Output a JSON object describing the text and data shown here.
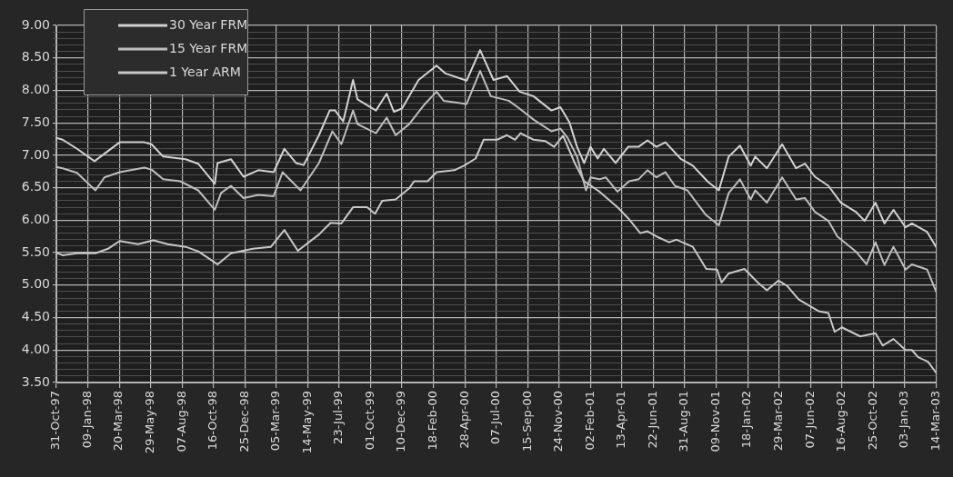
{
  "chart_data": {
    "type": "line",
    "xlim": [
      "1997-10-31",
      "2003-03-14"
    ],
    "xticks": [
      {
        "value": "1997-10-31",
        "label": "31-Oct-97"
      },
      {
        "value": "1998-01-09",
        "label": "09-Jan-98"
      },
      {
        "value": "1998-03-20",
        "label": "20-Mar-98"
      },
      {
        "value": "1998-05-29",
        "label": "29-May-98"
      },
      {
        "value": "1998-08-07",
        "label": "07-Aug-98"
      },
      {
        "value": "1998-10-16",
        "label": "16-Oct-98"
      },
      {
        "value": "1998-12-25",
        "label": "25-Dec-98"
      },
      {
        "value": "1999-03-05",
        "label": "05-Mar-99"
      },
      {
        "value": "1999-05-14",
        "label": "14-May-99"
      },
      {
        "value": "1999-07-23",
        "label": "23-Jul-99"
      },
      {
        "value": "1999-10-01",
        "label": "01-Oct-99"
      },
      {
        "value": "1999-12-10",
        "label": "10-Dec-99"
      },
      {
        "value": "2000-02-18",
        "label": "18-Feb-00"
      },
      {
        "value": "2000-04-28",
        "label": "28-Apr-00"
      },
      {
        "value": "2000-07-07",
        "label": "07-Jul-00"
      },
      {
        "value": "2000-09-15",
        "label": "15-Sep-00"
      },
      {
        "value": "2000-11-24",
        "label": "24-Nov-00"
      },
      {
        "value": "2001-02-02",
        "label": "02-Feb-01"
      },
      {
        "value": "2001-04-13",
        "label": "13-Apr-01"
      },
      {
        "value": "2001-06-22",
        "label": "22-Jun-01"
      },
      {
        "value": "2001-08-31",
        "label": "31-Aug-01"
      },
      {
        "value": "2001-11-09",
        "label": "09-Nov-01"
      },
      {
        "value": "2002-01-18",
        "label": "18-Jan-02"
      },
      {
        "value": "2002-03-29",
        "label": "29-Mar-02"
      },
      {
        "value": "2002-06-07",
        "label": "07-Jun-02"
      },
      {
        "value": "2002-08-16",
        "label": "16-Aug-02"
      },
      {
        "value": "2002-10-25",
        "label": "25-Oct-02"
      },
      {
        "value": "2003-01-03",
        "label": "03-Jan-03"
      },
      {
        "value": "2003-03-14",
        "label": "14-Mar-03"
      }
    ],
    "ylim": [
      3.5,
      9
    ],
    "yticks": [
      {
        "value": 3.5,
        "label": "3.50"
      },
      {
        "value": 3.6,
        "label": null
      },
      {
        "value": 3.7,
        "label": null
      },
      {
        "value": 3.8,
        "label": null
      },
      {
        "value": 3.9,
        "label": null
      },
      {
        "value": 4,
        "label": "4.00"
      },
      {
        "value": 4.1,
        "label": null
      },
      {
        "value": 4.2,
        "label": null
      },
      {
        "value": 4.3,
        "label": null
      },
      {
        "value": 4.4,
        "label": null
      },
      {
        "value": 4.5,
        "label": "4.50"
      },
      {
        "value": 4.6,
        "label": null
      },
      {
        "value": 4.7,
        "label": null
      },
      {
        "value": 4.8,
        "label": null
      },
      {
        "value": 4.9,
        "label": null
      },
      {
        "value": 5,
        "label": "5.00"
      },
      {
        "value": 5.1,
        "label": null
      },
      {
        "value": 5.2,
        "label": null
      },
      {
        "value": 5.3,
        "label": null
      },
      {
        "value": 5.4,
        "label": null
      },
      {
        "value": 5.5,
        "label": "5.50"
      },
      {
        "value": 5.6,
        "label": null
      },
      {
        "value": 5.7,
        "label": null
      },
      {
        "value": 5.8,
        "label": null
      },
      {
        "value": 5.9,
        "label": null
      },
      {
        "value": 6,
        "label": "6.00"
      },
      {
        "value": 6.1,
        "label": null
      },
      {
        "value": 6.2,
        "label": null
      },
      {
        "value": 6.3,
        "label": null
      },
      {
        "value": 6.4,
        "label": null
      },
      {
        "value": 6.5,
        "label": "6.50"
      },
      {
        "value": 6.6,
        "label": null
      },
      {
        "value": 6.7,
        "label": null
      },
      {
        "value": 6.8,
        "label": null
      },
      {
        "value": 6.9,
        "label": null
      },
      {
        "value": 7,
        "label": "7.00"
      },
      {
        "value": 7.1,
        "label": null
      },
      {
        "value": 7.2,
        "label": null
      },
      {
        "value": 7.3,
        "label": null
      },
      {
        "value": 7.4,
        "label": null
      },
      {
        "value": 7.5,
        "label": "7.50"
      },
      {
        "value": 7.6,
        "label": null
      },
      {
        "value": 7.7,
        "label": null
      },
      {
        "value": 7.8,
        "label": null
      },
      {
        "value": 7.9,
        "label": null
      },
      {
        "value": 8,
        "label": "8.00"
      },
      {
        "value": 8.1,
        "label": null
      },
      {
        "value": 8.2,
        "label": null
      },
      {
        "value": 8.3,
        "label": null
      },
      {
        "value": 8.4,
        "label": null
      },
      {
        "value": 8.5,
        "label": "8.50"
      },
      {
        "value": 8.6,
        "label": null
      },
      {
        "value": 8.7,
        "label": null
      },
      {
        "value": 8.8,
        "label": null
      },
      {
        "value": 8.9,
        "label": null
      },
      {
        "value": 9,
        "label": "9.00"
      }
    ],
    "grid": true,
    "legend": "top left",
    "line_style": "solid",
    "series": [
      {
        "name": "30 Year FRM",
        "color": "#d2d2d2",
        "x": [
          "1997-10-31",
          "1997-11-14",
          "1997-12-16",
          "1998-01-24",
          "1998-03-21",
          "1998-05-15",
          "1998-05-31",
          "1998-06-26",
          "1998-08-15",
          "1998-09-12",
          "1998-10-19",
          "1998-10-25",
          "1998-11-24",
          "1998-12-22",
          "1999-01-24",
          "1999-02-27",
          "1999-03-23",
          "1999-04-18",
          "1999-05-05",
          "1999-06-08",
          "1999-07-02",
          "1999-07-14",
          "1999-08-01",
          "1999-08-23",
          "1999-09-02",
          "1999-10-13",
          "1999-11-06",
          "1999-11-22",
          "1999-12-10",
          "2000-01-16",
          "2000-02-25",
          "2000-03-16",
          "2000-05-02",
          "2000-06-01",
          "2000-07-01",
          "2000-07-31",
          "2000-08-28",
          "2000-09-28",
          "2000-11-07",
          "2000-11-27",
          "2000-12-17",
          "2001-01-03",
          "2001-01-19",
          "2001-02-02",
          "2001-02-18",
          "2001-03-04",
          "2001-03-30",
          "2001-04-27",
          "2001-05-20",
          "2001-06-09",
          "2001-06-29",
          "2001-07-19",
          "2001-08-23",
          "2001-09-18",
          "2001-10-22",
          "2001-11-15",
          "2001-12-07",
          "2002-01-01",
          "2002-01-25",
          "2002-02-04",
          "2002-03-02",
          "2002-04-05",
          "2002-05-06",
          "2002-05-26",
          "2002-06-17",
          "2002-07-17",
          "2002-08-14",
          "2002-09-16",
          "2002-10-06",
          "2002-10-30",
          "2002-11-19",
          "2002-12-09",
          "2003-01-05",
          "2003-01-19",
          "2003-02-22",
          "2003-03-14"
        ],
        "values": [
          7.27,
          7.24,
          7.1,
          6.91,
          7.2,
          7.2,
          7.17,
          6.98,
          6.94,
          6.87,
          6.56,
          6.88,
          6.94,
          6.67,
          6.77,
          6.74,
          7.1,
          6.88,
          6.85,
          7.31,
          7.69,
          7.69,
          7.52,
          8.16,
          7.86,
          7.69,
          7.95,
          7.67,
          7.72,
          8.16,
          8.38,
          8.26,
          8.15,
          8.62,
          8.16,
          8.22,
          7.98,
          7.91,
          7.69,
          7.74,
          7.51,
          7.13,
          6.88,
          7.13,
          6.95,
          7.1,
          6.88,
          7.13,
          7.13,
          7.23,
          7.13,
          7.2,
          6.94,
          6.84,
          6.59,
          6.46,
          6.98,
          7.15,
          6.84,
          6.98,
          6.8,
          7.17,
          6.8,
          6.87,
          6.67,
          6.53,
          6.27,
          6.13,
          5.99,
          6.27,
          5.95,
          6.16,
          5.89,
          5.95,
          5.82,
          5.59
        ]
      },
      {
        "name": "15 Year FRM",
        "color": "#bebebe",
        "x": [
          "1997-10-31",
          "1997-11-14",
          "1997-12-16",
          "1998-01-26",
          "1998-02-15",
          "1998-03-21",
          "1998-05-15",
          "1998-05-31",
          "1998-06-26",
          "1998-08-03",
          "1998-09-12",
          "1998-10-19",
          "1998-11-02",
          "1998-11-24",
          "1998-12-22",
          "1999-01-24",
          "1999-02-27",
          "1999-03-19",
          "1999-04-28",
          "1999-06-08",
          "1999-07-08",
          "1999-07-28",
          "1999-08-23",
          "1999-09-02",
          "1999-10-13",
          "1999-11-06",
          "1999-11-26",
          "1999-12-26",
          "2000-01-30",
          "2000-02-25",
          "2000-03-12",
          "2000-05-02",
          "2000-06-01",
          "2000-06-25",
          "2000-08-04",
          "2000-08-28",
          "2000-09-28",
          "2000-11-07",
          "2000-11-27",
          "2000-12-13",
          "2001-01-03",
          "2001-01-23",
          "2001-02-02",
          "2001-02-22",
          "2001-03-08",
          "2001-04-03",
          "2001-04-29",
          "2001-05-20",
          "2001-06-09",
          "2001-06-29",
          "2001-07-19",
          "2001-08-09",
          "2001-09-06",
          "2001-10-16",
          "2001-11-15",
          "2001-12-07",
          "2002-01-01",
          "2002-01-25",
          "2002-02-04",
          "2002-03-02",
          "2002-04-05",
          "2002-05-06",
          "2002-05-26",
          "2002-06-17",
          "2002-07-17",
          "2002-08-06",
          "2002-09-16",
          "2002-10-10",
          "2002-10-30",
          "2002-11-19",
          "2002-12-09",
          "2003-01-05",
          "2003-01-19",
          "2003-02-22",
          "2003-03-14"
        ],
        "values": [
          6.82,
          6.8,
          6.73,
          6.46,
          6.66,
          6.74,
          6.81,
          6.78,
          6.63,
          6.6,
          6.46,
          6.16,
          6.42,
          6.53,
          6.34,
          6.39,
          6.37,
          6.74,
          6.46,
          6.88,
          7.37,
          7.17,
          7.69,
          7.48,
          7.34,
          7.58,
          7.31,
          7.48,
          7.79,
          7.98,
          7.84,
          7.79,
          8.3,
          7.91,
          7.84,
          7.72,
          7.55,
          7.37,
          7.41,
          7.27,
          6.98,
          6.46,
          6.66,
          6.63,
          6.66,
          6.44,
          6.6,
          6.63,
          6.77,
          6.66,
          6.74,
          6.53,
          6.46,
          6.09,
          5.92,
          6.42,
          6.63,
          6.32,
          6.46,
          6.27,
          6.66,
          6.32,
          6.34,
          6.13,
          5.99,
          5.75,
          5.52,
          5.32,
          5.66,
          5.31,
          5.59,
          5.24,
          5.32,
          5.24,
          4.9
        ]
      },
      {
        "name": "1 Year ARM",
        "color": "#c8c8c8",
        "x": [
          "1997-10-31",
          "1997-11-14",
          "1997-12-16",
          "1998-01-26",
          "1998-02-23",
          "1998-03-21",
          "1998-05-01",
          "1998-06-04",
          "1998-07-06",
          "1998-08-15",
          "1998-09-12",
          "1998-10-25",
          "1998-11-24",
          "1999-01-12",
          "1999-02-21",
          "1999-03-23",
          "1999-04-22",
          "1999-06-08",
          "1999-07-04",
          "1999-07-28",
          "1999-08-23",
          "1999-09-23",
          "1999-10-11",
          "1999-10-27",
          "1999-11-26",
          "1999-12-26",
          "2000-01-06",
          "2000-02-05",
          "2000-02-25",
          "2000-04-05",
          "2000-04-26",
          "2000-05-22",
          "2000-06-09",
          "2000-07-09",
          "2000-07-31",
          "2000-08-18",
          "2000-08-30",
          "2000-09-28",
          "2000-10-24",
          "2000-11-13",
          "2000-12-03",
          "2000-12-29",
          "2001-01-19",
          "2001-02-22",
          "2001-04-03",
          "2001-04-27",
          "2001-05-24",
          "2001-06-09",
          "2001-06-29",
          "2001-07-27",
          "2001-08-13",
          "2001-09-18",
          "2001-10-18",
          "2001-11-11",
          "2001-11-21",
          "2001-12-07",
          "2002-01-11",
          "2002-02-10",
          "2002-03-02",
          "2002-03-28",
          "2002-04-16",
          "2002-05-12",
          "2002-06-25",
          "2002-07-17",
          "2002-07-31",
          "2002-08-16",
          "2002-09-26",
          "2002-10-30",
          "2002-11-15",
          "2002-12-09",
          "2003-01-05",
          "2003-01-19",
          "2003-02-02",
          "2003-02-24",
          "2003-03-14"
        ],
        "values": [
          5.5,
          5.46,
          5.49,
          5.49,
          5.56,
          5.68,
          5.63,
          5.69,
          5.63,
          5.59,
          5.52,
          5.32,
          5.49,
          5.56,
          5.59,
          5.85,
          5.53,
          5.78,
          5.96,
          5.95,
          6.2,
          6.2,
          6.1,
          6.3,
          6.32,
          6.49,
          6.6,
          6.6,
          6.74,
          6.77,
          6.84,
          6.95,
          7.24,
          7.24,
          7.31,
          7.24,
          7.34,
          7.24,
          7.22,
          7.13,
          7.3,
          6.88,
          6.6,
          6.44,
          6.2,
          6.03,
          5.8,
          5.83,
          5.75,
          5.66,
          5.7,
          5.59,
          5.25,
          5.24,
          5.04,
          5.18,
          5.25,
          5.04,
          4.92,
          5.07,
          4.99,
          4.78,
          4.6,
          4.57,
          4.28,
          4.35,
          4.21,
          4.26,
          4.07,
          4.17,
          4,
          4,
          3.89,
          3.82,
          3.65
        ]
      }
    ]
  }
}
